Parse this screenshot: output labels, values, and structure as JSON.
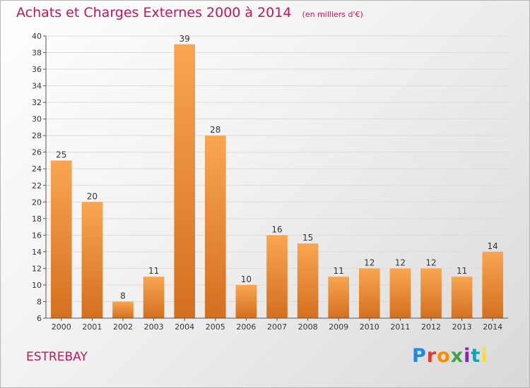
{
  "header": {
    "title": "Achats et Charges Externes 2000 à 2014",
    "subtitle": "(en milliers d'€)"
  },
  "footer": {
    "town": "ESTREBAY",
    "logo_text": "Proxiti",
    "logo_colors": [
      "#1e88e5",
      "#e53935",
      "#fb8c00",
      "#43a047",
      "#8e24aa",
      "#00acc1",
      "#fdd835"
    ]
  },
  "chart_data": {
    "type": "bar",
    "categories": [
      "2000",
      "2001",
      "2002",
      "2003",
      "2004",
      "2005",
      "2006",
      "2007",
      "2008",
      "2009",
      "2010",
      "2011",
      "2012",
      "2013",
      "2014"
    ],
    "values": [
      25,
      20,
      8,
      11,
      39,
      28,
      10,
      16,
      15,
      11,
      12,
      12,
      12,
      11,
      14
    ],
    "title": "Achats et Charges Externes 2000 à 2014",
    "subtitle": "(en milliers d'€)",
    "ylim": [
      6,
      40
    ],
    "yticks": [
      6,
      8,
      10,
      12,
      14,
      16,
      18,
      20,
      22,
      24,
      26,
      28,
      30,
      32,
      34,
      36,
      38,
      40
    ],
    "grid": true,
    "bar_color_top": "#f9a651",
    "bar_color_bottom": "#d46f1e",
    "data_labels": true
  }
}
